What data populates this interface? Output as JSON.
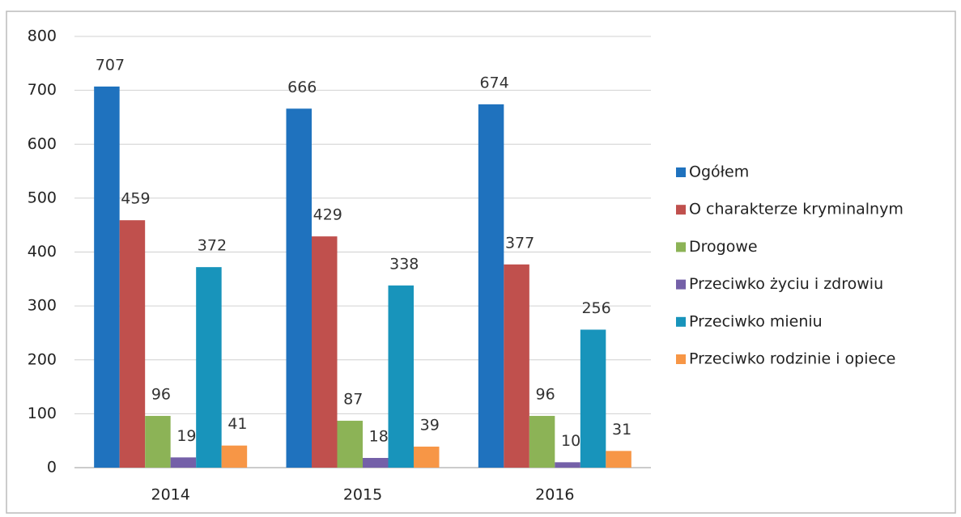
{
  "chart_data": {
    "type": "bar",
    "categories": [
      "2014",
      "2015",
      "2016"
    ],
    "series": [
      {
        "name": "Ogółem",
        "color": "#1f72be",
        "values": [
          707,
          666,
          674
        ]
      },
      {
        "name": "O charakterze kryminalnym",
        "color": "#c0504d",
        "values": [
          459,
          429,
          377
        ]
      },
      {
        "name": "Drogowe",
        "color": "#8cb356",
        "values": [
          96,
          87,
          96
        ]
      },
      {
        "name": "Przeciwko życiu i zdrowiu",
        "color": "#7460a8",
        "values": [
          19,
          18,
          10
        ]
      },
      {
        "name": "Przeciwko mieniu",
        "color": "#1894bb",
        "values": [
          372,
          338,
          256
        ]
      },
      {
        "name": "Przeciwko rodzinie i opiece",
        "color": "#f79646",
        "values": [
          41,
          39,
          31
        ]
      }
    ],
    "ylim": [
      0,
      800
    ],
    "yticks": [
      0,
      100,
      200,
      300,
      400,
      500,
      600,
      700,
      800
    ],
    "grid": true,
    "legend": "right"
  }
}
